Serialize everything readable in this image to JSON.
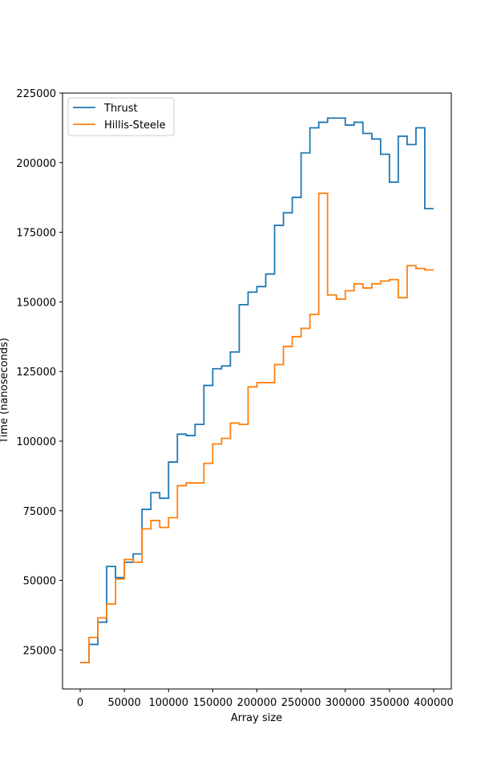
{
  "chart_data": {
    "type": "line",
    "title": "",
    "xlabel": "Array size",
    "ylabel": "Time (nanoseconds)",
    "xlim": [
      -20000,
      420000
    ],
    "ylim": [
      11000,
      225000
    ],
    "xticks": [
      0,
      50000,
      100000,
      150000,
      200000,
      250000,
      300000,
      350000,
      400000
    ],
    "yticks": [
      25000,
      50000,
      75000,
      100000,
      125000,
      150000,
      175000,
      200000,
      225000
    ],
    "grid": false,
    "legend_position": "top-left",
    "drawstyle": "steps-post",
    "x": [
      0,
      10000,
      20000,
      30000,
      40000,
      50000,
      60000,
      70000,
      80000,
      90000,
      100000,
      110000,
      120000,
      130000,
      140000,
      150000,
      160000,
      170000,
      180000,
      190000,
      200000,
      210000,
      220000,
      230000,
      240000,
      250000,
      260000,
      270000,
      280000,
      290000,
      300000,
      310000,
      320000,
      330000,
      340000,
      350000,
      360000,
      370000,
      380000,
      390000,
      400000
    ],
    "series": [
      {
        "name": "Thrust",
        "color": "#1f77b4",
        "values": [
          20500,
          27000,
          35000,
          55000,
          51000,
          56500,
          59500,
          75500,
          81500,
          79500,
          92500,
          102500,
          102000,
          106000,
          120000,
          126000,
          127000,
          132000,
          149000,
          153500,
          155500,
          160000,
          177500,
          182000,
          187500,
          203500,
          212500,
          214500,
          216000,
          216000,
          213500,
          214500,
          210500,
          208500,
          203000,
          193000,
          209500,
          206500,
          212500,
          183500,
          183500
        ]
      },
      {
        "name": "Hillis-Steele",
        "color": "#ff7f0e",
        "values": [
          20500,
          29500,
          36500,
          41500,
          50500,
          57500,
          56500,
          68500,
          71500,
          69000,
          72500,
          84000,
          85000,
          85000,
          92000,
          99000,
          101000,
          106500,
          106000,
          119500,
          121000,
          121000,
          127500,
          134000,
          137500,
          140500,
          145500,
          189000,
          152500,
          151000,
          154000,
          156500,
          155000,
          156500,
          157500,
          158000,
          151500,
          163000,
          162000,
          161500,
          161500
        ]
      }
    ]
  }
}
